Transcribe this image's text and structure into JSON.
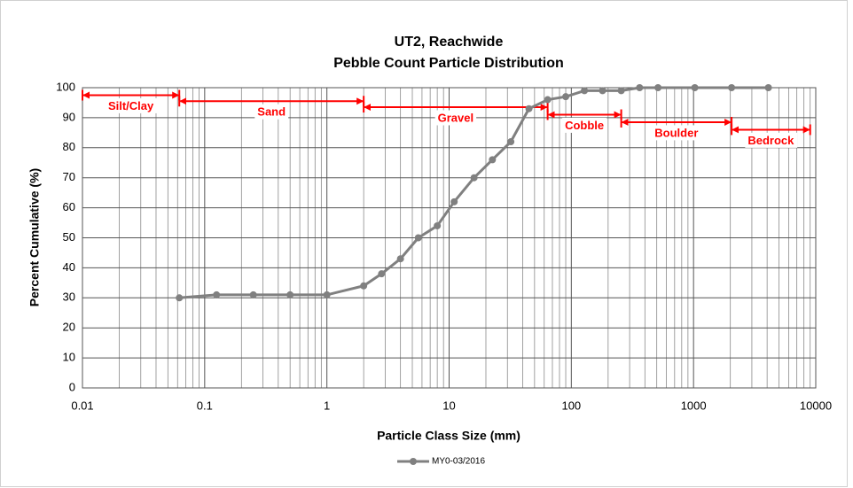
{
  "chart_data": {
    "type": "line",
    "title": [
      "UT2, Reachwide",
      "Pebble Count Particle Distribution"
    ],
    "x_label": "Particle Class Size (mm)",
    "y_label": "Percent Cumulative (%)",
    "x": [
      0.062,
      0.125,
      0.25,
      0.5,
      1,
      2,
      2.8,
      4,
      5.6,
      8,
      11,
      16,
      22.6,
      32,
      45,
      64,
      90,
      128,
      180,
      256,
      362,
      512,
      1024,
      2048,
      4096
    ],
    "series": [
      {
        "name": "MY0-03/2016",
        "color": "#808080",
        "values": [
          30,
          31,
          31,
          31,
          31,
          34,
          38,
          43,
          50,
          54,
          62,
          70,
          76,
          82,
          93,
          96,
          97,
          99,
          99,
          99,
          100,
          100,
          100,
          100,
          100
        ]
      }
    ],
    "xlim": [
      0.01,
      10000
    ],
    "xticks": [
      0.01,
      0.1,
      1,
      10,
      100,
      1000,
      10000
    ],
    "ylim": [
      0,
      100
    ],
    "yticks": [
      0,
      10,
      20,
      30,
      40,
      50,
      60,
      70,
      80,
      90,
      100
    ],
    "x_log": true,
    "grid": true,
    "minor_grid": true,
    "legend": "bottom",
    "annotation_color": "#ff0000",
    "annotations": [
      {
        "text": "Silt/Clay",
        "x": [
          0.01,
          0.062
        ],
        "y": 97.5
      },
      {
        "text": "Sand",
        "x": [
          0.062,
          2
        ],
        "y": 95.5
      },
      {
        "text": "Gravel",
        "x": [
          2,
          64
        ],
        "y": 93.5
      },
      {
        "text": "Cobble",
        "x": [
          64,
          256
        ],
        "y": 91
      },
      {
        "text": "Boulder",
        "x": [
          256,
          2048
        ],
        "y": 88.5
      },
      {
        "text": "Bedrock",
        "x": [
          2048,
          9000
        ],
        "y": 86
      }
    ]
  }
}
